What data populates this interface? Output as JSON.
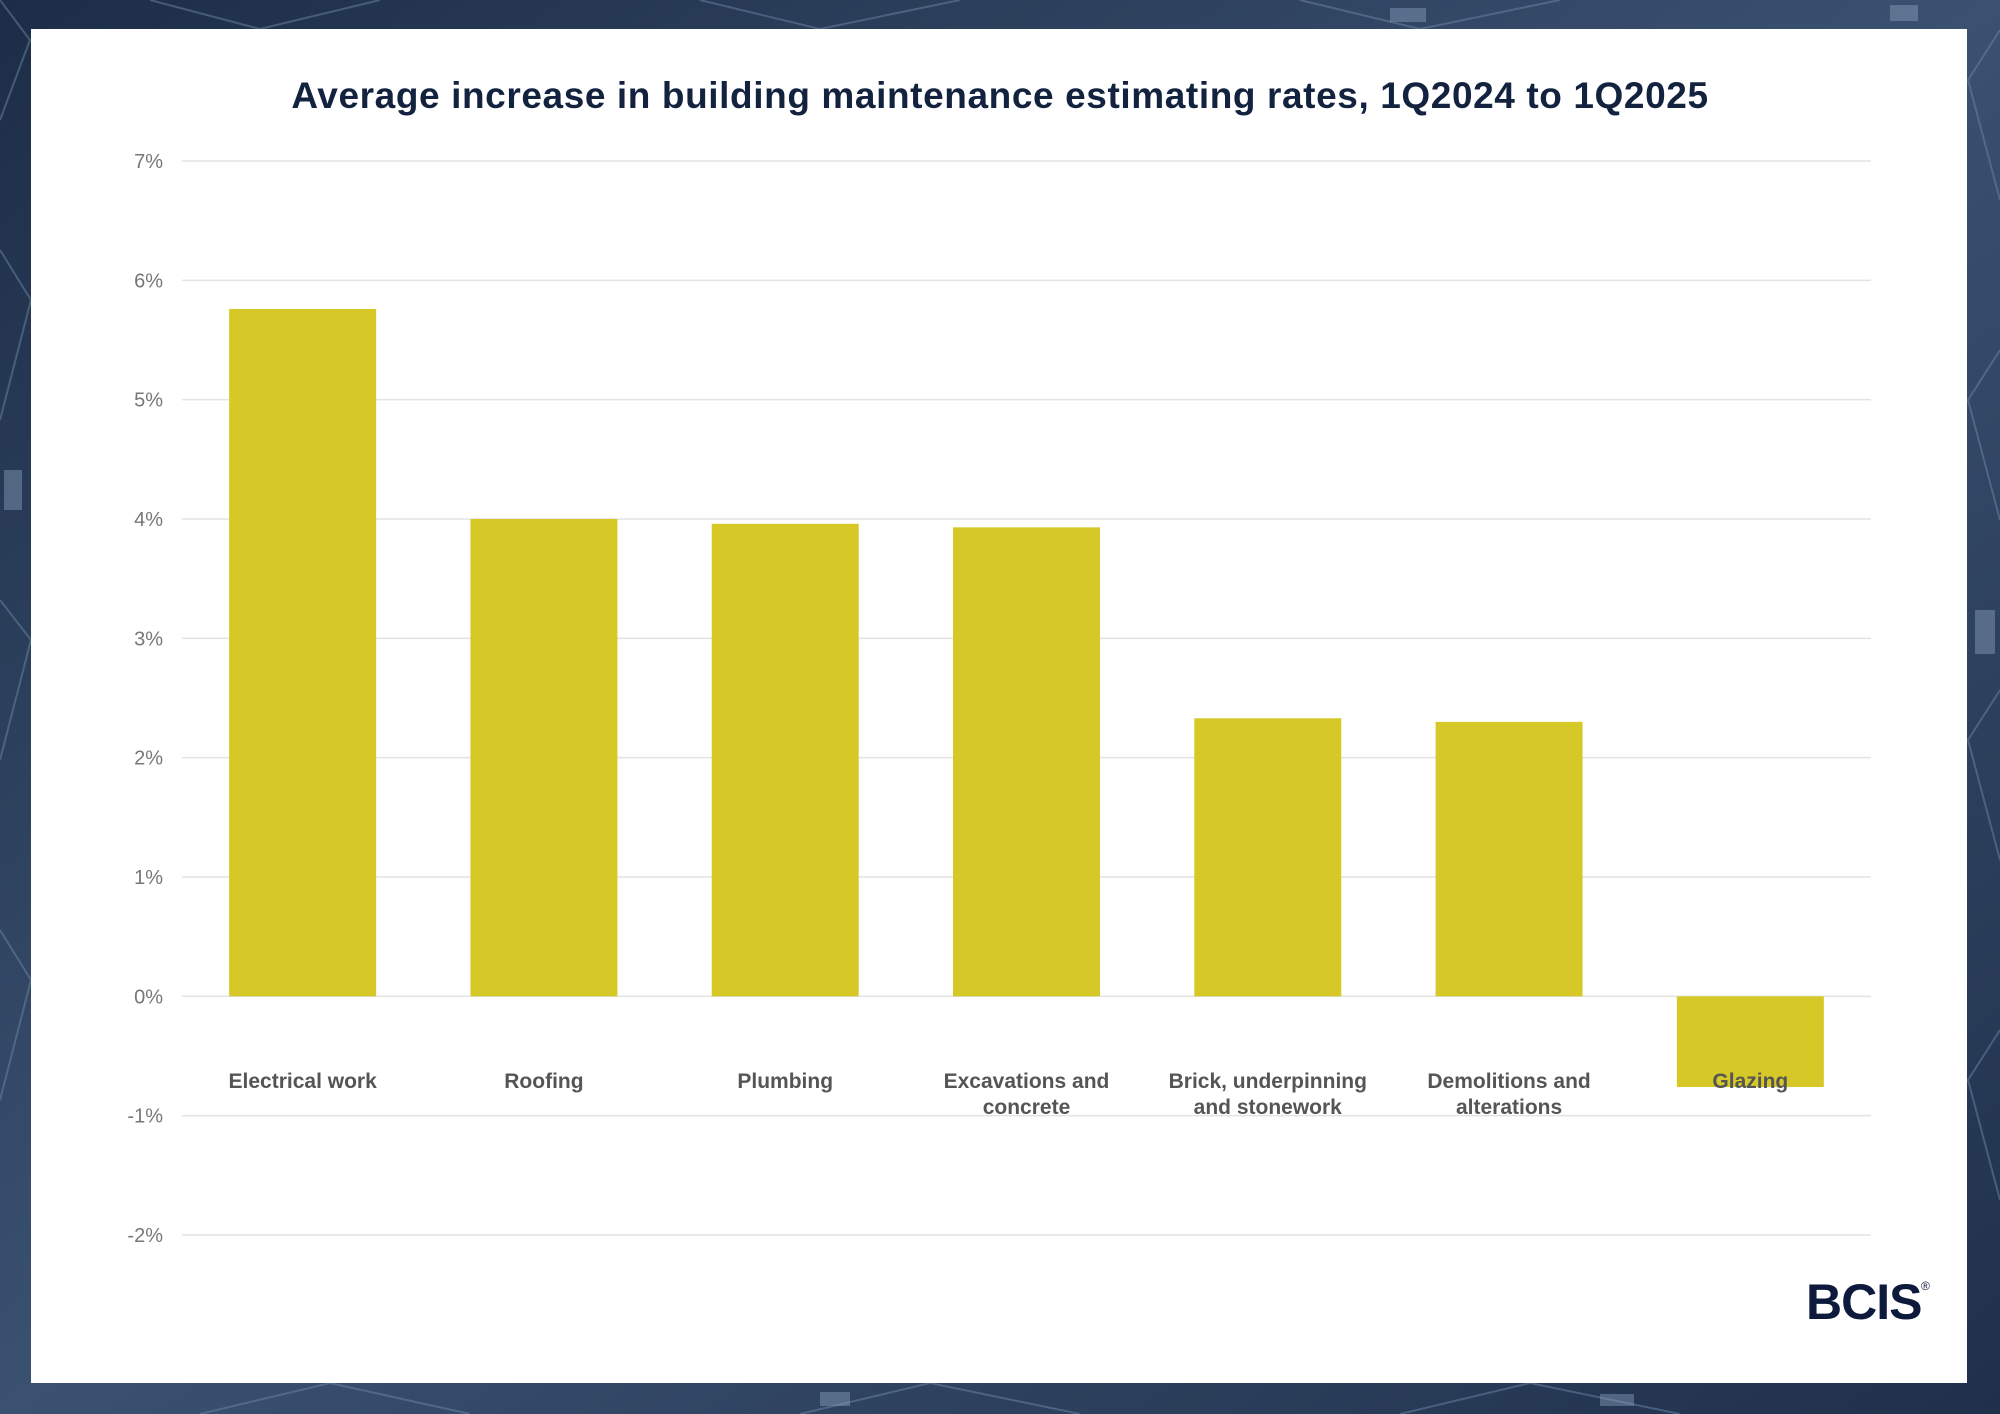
{
  "chart_data": {
    "type": "bar",
    "title": "Average increase in building maintenance estimating rates, 1Q2024 to 1Q2025",
    "xlabel": "",
    "ylabel": "",
    "categories": [
      "Electrical work",
      "Roofing",
      "Plumbing",
      "Excavations and concrete",
      "Brick, underpinning and stonework",
      "Demolitions and alterations",
      "Glazing"
    ],
    "category_lines": [
      [
        "Electrical work"
      ],
      [
        "Roofing"
      ],
      [
        "Plumbing"
      ],
      [
        "Excavations and",
        "concrete"
      ],
      [
        "Brick, underpinning",
        "and stonework"
      ],
      [
        "Demolitions and",
        "alterations"
      ],
      [
        "Glazing"
      ]
    ],
    "values": [
      5.76,
      4.0,
      3.96,
      3.93,
      2.33,
      2.3,
      -0.76
    ],
    "unit": "%",
    "ylim": [
      -2,
      7
    ],
    "yticks": [
      7,
      6,
      5,
      4,
      3,
      2,
      1,
      0,
      -1,
      -2
    ],
    "ytick_labels": [
      "7%",
      "6%",
      "5%",
      "4%",
      "3%",
      "2%",
      "1%",
      "0%",
      "-1%",
      "-2%"
    ],
    "grid": true,
    "legend": "none",
    "bar_color": "#d6c927"
  },
  "branding": {
    "logo_text": "BCIS",
    "logo_mark": "®"
  },
  "colors": {
    "background": "#2b3f5c",
    "card": "#ffffff",
    "title": "#13233f",
    "bar": "#d6c927",
    "logo": "#0e1a3c"
  }
}
